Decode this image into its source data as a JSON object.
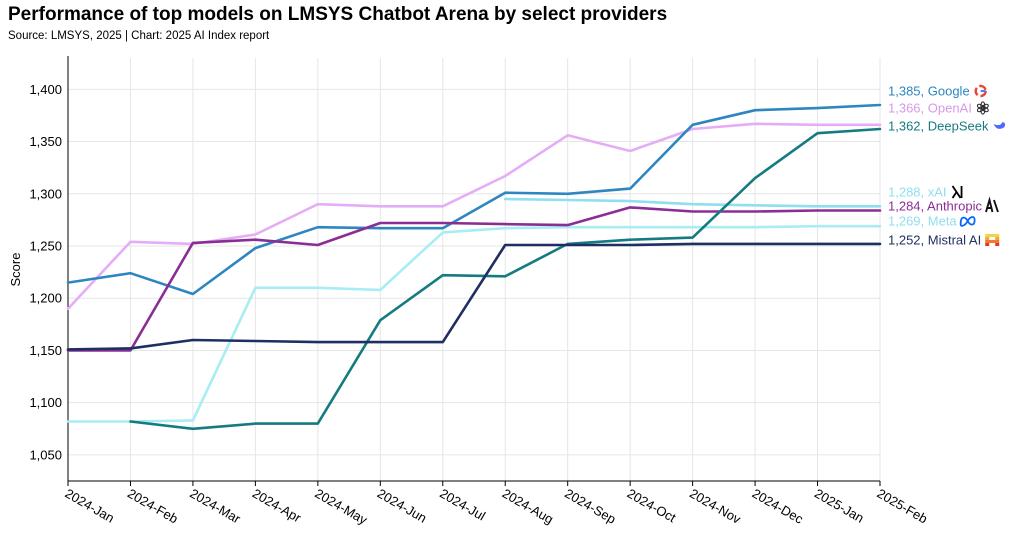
{
  "header": {
    "title": "Performance of top models on LMSYS Chatbot Arena by select providers",
    "source": "Source: LMSYS, 2025 | Chart: 2025 AI Index report"
  },
  "chart_data": {
    "type": "line",
    "title": "Performance of top models on LMSYS Chatbot Arena by select providers",
    "ylabel": "Score",
    "xlabel": "",
    "ylim": [
      1025,
      1430
    ],
    "yticks": [
      1050,
      1100,
      1150,
      1200,
      1250,
      1300,
      1350,
      1400
    ],
    "ytick_labels": [
      "1,050",
      "1,100",
      "1,150",
      "1,200",
      "1,250",
      "1,300",
      "1,350",
      "1,400"
    ],
    "grid": true,
    "categories": [
      "2024-Jan",
      "2024-Feb",
      "2024-Mar",
      "2024-Apr",
      "2024-May",
      "2024-Jun",
      "2024-Jul",
      "2024-Aug",
      "2024-Sep",
      "2024-Oct",
      "2024-Nov",
      "2024-Dec",
      "2025-Jan",
      "2025-Feb"
    ],
    "series": [
      {
        "name": "Google",
        "end_label": "1,385, Google",
        "color": "#2e86c1",
        "icon": "google-icon",
        "values": [
          1215,
          1224,
          1204,
          1248,
          1268,
          1267,
          1267,
          1301,
          1300,
          1305,
          1366,
          1380,
          1382,
          1385
        ]
      },
      {
        "name": "OpenAI",
        "end_label": "1,366, OpenAI",
        "color": "#e6adf7",
        "icon": "openai-icon",
        "values": [
          1190,
          1254,
          1252,
          1261,
          1290,
          1288,
          1288,
          1317,
          1356,
          1341,
          1362,
          1367,
          1366,
          1366
        ]
      },
      {
        "name": "DeepSeek",
        "end_label": "1,362, DeepSeek",
        "color": "#167b80",
        "icon": "deepseek-icon",
        "values": [
          null,
          1082,
          1075,
          1080,
          1080,
          1179,
          1222,
          1221,
          1252,
          1256,
          1258,
          1315,
          1358,
          1362
        ]
      },
      {
        "name": "xAI",
        "end_label": "1,288, xAI",
        "color": "#8fdff0",
        "icon": "xai-icon",
        "values": [
          null,
          null,
          null,
          null,
          null,
          null,
          null,
          1295,
          1294,
          1293,
          1290,
          1289,
          1288,
          1288
        ]
      },
      {
        "name": "Anthropic",
        "end_label": "1,284, Anthropic",
        "color": "#8a2e95",
        "icon": "anthropic-icon",
        "values": [
          1150,
          1150,
          1253,
          1256,
          1251,
          1272,
          1272,
          1271,
          1270,
          1287,
          1283,
          1283,
          1284,
          1284
        ]
      },
      {
        "name": "Meta",
        "end_label": "1,269, Meta",
        "color": "#a8edf4",
        "icon": "meta-icon",
        "values": [
          1082,
          1082,
          1083,
          1210,
          1210,
          1208,
          1263,
          1267,
          1268,
          1268,
          1268,
          1268,
          1269,
          1269
        ]
      },
      {
        "name": "Mistral AI",
        "end_label": "1,252, Mistral AI",
        "color": "#1f2f63",
        "icon": "mistral-icon",
        "values": [
          1151,
          1152,
          1160,
          1159,
          1158,
          1158,
          1158,
          1251,
          1251,
          1251,
          1252,
          1252,
          1252,
          1252
        ]
      }
    ]
  }
}
